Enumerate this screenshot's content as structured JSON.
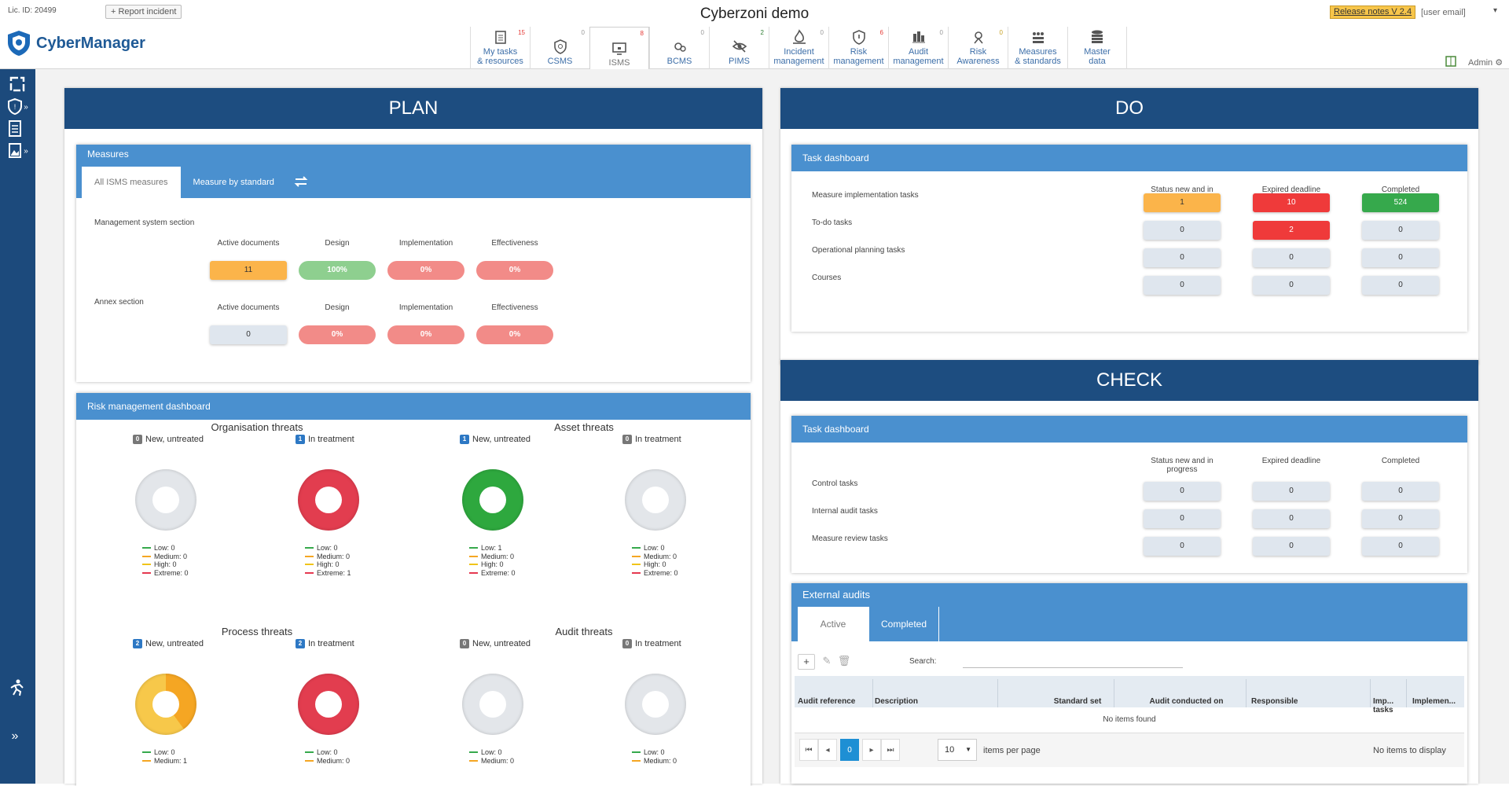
{
  "topbar": {
    "license": "Lic. ID: 20499",
    "report_btn": "+ Report incident",
    "logo_text": "CyberManager",
    "title": "Cyberzoni demo",
    "release_notes": "Release notes V 2.4",
    "user_email": "[user email]",
    "user_caret": "▾",
    "admin": "Admin ⚙"
  },
  "nav": [
    {
      "l1": "My tasks",
      "l2": "& resources",
      "badge": "15",
      "badge_color": "#e53935",
      "icon": "tasks-icon"
    },
    {
      "l1": "CSMS",
      "l2": "",
      "badge": "0",
      "badge_color": "#999999",
      "icon": "shield-icon"
    },
    {
      "l1": "ISMS",
      "l2": "",
      "badge": "8",
      "badge_color": "#e53935",
      "icon": "monitor-lock-icon",
      "active": true
    },
    {
      "l1": "BCMS",
      "l2": "",
      "badge": "0",
      "badge_color": "#999999",
      "icon": "gears-icon"
    },
    {
      "l1": "PIMS",
      "l2": "",
      "badge": "2",
      "badge_color": "#2e7d32",
      "icon": "eye-slash-icon"
    },
    {
      "l1": "Incident",
      "l2": "management",
      "badge": "0",
      "badge_color": "#999999",
      "icon": "fire-icon"
    },
    {
      "l1": "Risk",
      "l2": "management",
      "badge": "6",
      "badge_color": "#e53935",
      "icon": "risk-shield-icon"
    },
    {
      "l1": "Audit",
      "l2": "management",
      "badge": "0",
      "badge_color": "#999999",
      "icon": "audit-icon"
    },
    {
      "l1": "Risk",
      "l2": "Awareness",
      "badge": "0",
      "badge_color": "#c9a227",
      "icon": "awareness-icon"
    },
    {
      "l1": "Measures",
      "l2": "& standards",
      "badge": "",
      "badge_color": "#999999",
      "icon": "standards-icon"
    },
    {
      "l1": "Master",
      "l2": "data",
      "badge": "",
      "badge_color": "#999999",
      "icon": "database-icon"
    }
  ],
  "plan": {
    "title": "PLAN",
    "measures": {
      "title": "Measures",
      "tab_all": "All ISMS measures",
      "tab_std": "Measure by standard",
      "mgmt_section": "Management system section",
      "annex_section": "Annex section",
      "cols": [
        "Active documents",
        "Design",
        "Implementation",
        "Effectiveness"
      ],
      "mgmt_values": [
        "11",
        "100%",
        "0%",
        "0%"
      ],
      "annex_values": [
        "0",
        "0%",
        "0%",
        "0%"
      ]
    },
    "risk": {
      "title": "Risk management dashboard",
      "groups": [
        {
          "title": "Organisation threats",
          "charts": [
            {
              "count": "0",
              "label": "New, untreated",
              "low": "Low: 0",
              "medium": "Medium: 0",
              "high": "High: 0",
              "extreme": "Extreme: 0"
            },
            {
              "count": "1",
              "label": "In treatment",
              "low": "Low: 0",
              "medium": "Medium: 0",
              "high": "High: 0",
              "extreme": "Extreme: 1"
            }
          ]
        },
        {
          "title": "Asset threats",
          "charts": [
            {
              "count": "1",
              "label": "New, untreated",
              "low": "Low: 1",
              "medium": "Medium: 0",
              "high": "High: 0",
              "extreme": "Extreme: 0"
            },
            {
              "count": "0",
              "label": "In treatment",
              "low": "Low: 0",
              "medium": "Medium: 0",
              "high": "High: 0",
              "extreme": "Extreme: 0"
            }
          ]
        },
        {
          "title": "Process threats",
          "charts": [
            {
              "count": "2",
              "label": "New, untreated",
              "low": "Low: 0",
              "medium": "Medium: 1"
            },
            {
              "count": "2",
              "label": "In treatment",
              "low": "Low: 0",
              "medium": "Medium: 0"
            }
          ]
        },
        {
          "title": "Audit threats",
          "charts": [
            {
              "count": "0",
              "label": "New, untreated",
              "low": "Low: 0",
              "medium": "Medium: 0"
            },
            {
              "count": "0",
              "label": "In treatment",
              "low": "Low: 0",
              "medium": "Medium: 0"
            }
          ]
        }
      ]
    }
  },
  "do": {
    "title": "DO",
    "dashboard_title": "Task dashboard",
    "cols": [
      "Status new and in progress",
      "Expired deadline",
      "Completed"
    ],
    "rows": [
      {
        "label": "Measure implementation tasks",
        "values": [
          "1",
          "10",
          "524"
        ]
      },
      {
        "label": "To-do tasks",
        "values": [
          "0",
          "2",
          "0"
        ]
      },
      {
        "label": "Operational planning tasks",
        "values": [
          "0",
          "0",
          "0"
        ]
      },
      {
        "label": "Courses",
        "values": [
          "0",
          "0",
          "0"
        ]
      }
    ]
  },
  "check": {
    "title": "CHECK",
    "dashboard_title": "Task dashboard",
    "cols": [
      "Status new and in progress",
      "Expired deadline",
      "Completed"
    ],
    "rows": [
      {
        "label": "Control tasks",
        "values": [
          "0",
          "0",
          "0"
        ]
      },
      {
        "label": "Internal audit tasks",
        "values": [
          "0",
          "0",
          "0"
        ]
      },
      {
        "label": "Measure review tasks",
        "values": [
          "0",
          "0",
          "0"
        ]
      }
    ],
    "external": {
      "title": "External audits",
      "tab_active": "Active",
      "tab_completed": "Completed",
      "search_label": "Search:",
      "columns": [
        "Audit reference",
        "Description",
        "Standard set",
        "Audit conducted on",
        "Responsible",
        "Imp... tasks",
        "Implemen..."
      ],
      "empty": "No items found",
      "page": "0",
      "per_page": "10",
      "per_page_label": "items per page",
      "no_items": "No items to display"
    }
  }
}
